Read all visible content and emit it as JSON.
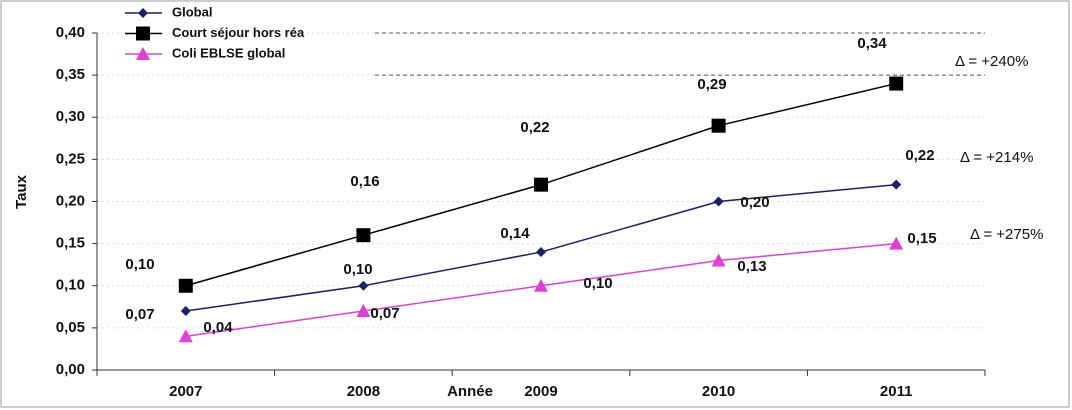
{
  "chart_data": {
    "type": "line",
    "x_label": "Année",
    "y_label": "Taux",
    "categories": [
      "2007",
      "2008",
      "2009",
      "2010",
      "2011"
    ],
    "series": [
      {
        "name": "Global",
        "color": "#1c1f6b",
        "marker": "diamond",
        "values": [
          0.07,
          0.1,
          0.14,
          0.2,
          0.22
        ],
        "value_labels": [
          "0,07",
          "0,10",
          "0,14",
          "0,20",
          "0,22"
        ]
      },
      {
        "name": "Court séjour hors réa",
        "color": "#000000",
        "marker": "square",
        "values": [
          0.1,
          0.16,
          0.22,
          0.29,
          0.34
        ],
        "value_labels": [
          "0,10",
          "0,16",
          "0,22",
          "0,29",
          "0,34"
        ]
      },
      {
        "name": "Coli EBLSE global",
        "color": "#e23fd6",
        "marker": "triangle",
        "values": [
          0.04,
          0.07,
          0.1,
          0.13,
          0.15
        ],
        "value_labels": [
          "0,04",
          "0,07",
          "0,10",
          "0,13",
          "0,15"
        ]
      }
    ],
    "ylim": [
      0,
      0.4
    ],
    "yticks": [
      {
        "value": 0,
        "label": "0,00"
      },
      {
        "value": 0.05,
        "label": "0,05"
      },
      {
        "value": 0.1,
        "label": "0,10"
      },
      {
        "value": 0.15,
        "label": "0,15"
      },
      {
        "value": 0.2,
        "label": "0,20"
      },
      {
        "value": 0.25,
        "label": "0,25"
      },
      {
        "value": 0.3,
        "label": "0,30"
      },
      {
        "value": 0.35,
        "label": "0,35"
      },
      {
        "value": 0.4,
        "label": "0,40"
      }
    ],
    "reference_lines": [
      0.4,
      0.35
    ],
    "annotations": [
      "Δ = +240%",
      "Δ = +214%",
      "Δ = +275%"
    ],
    "grid": true
  }
}
